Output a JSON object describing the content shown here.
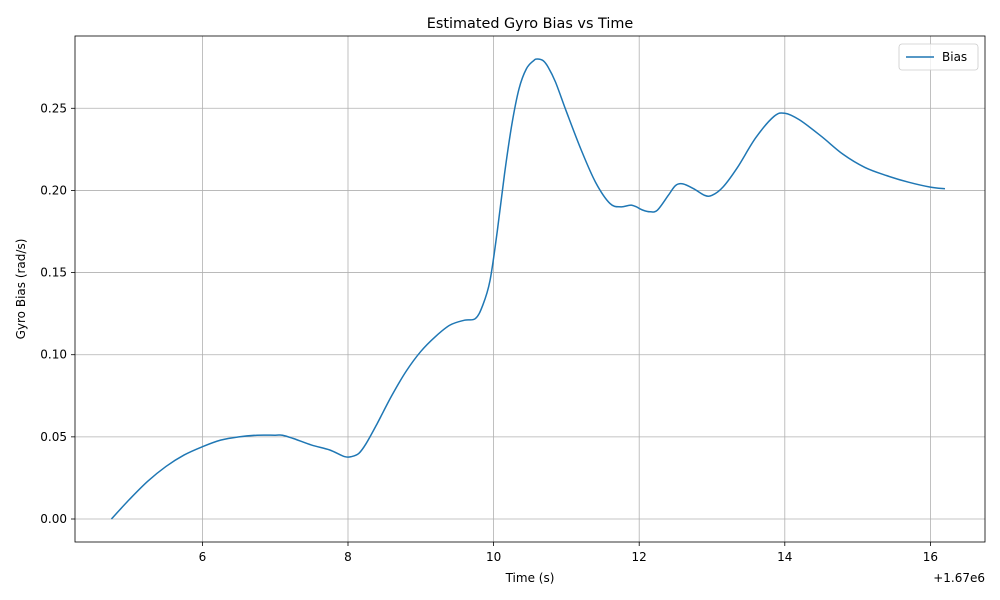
{
  "chart_data": {
    "type": "line",
    "title": "Estimated Gyro Bias vs Time",
    "xlabel": "Time (s)",
    "ylabel": "Gyro Bias (rad/s)",
    "x_offset_label": "+1.67e6",
    "xlim": [
      4.25,
      16.75
    ],
    "ylim": [
      -0.014,
      0.294
    ],
    "xticks": [
      6,
      8,
      10,
      12,
      14,
      16
    ],
    "xtick_labels": [
      "6",
      "8",
      "10",
      "12",
      "14",
      "16"
    ],
    "yticks": [
      0.0,
      0.05,
      0.1,
      0.15,
      0.2,
      0.25
    ],
    "ytick_labels": [
      "0.00",
      "0.05",
      "0.10",
      "0.15",
      "0.20",
      "0.25"
    ],
    "grid": true,
    "legend_position": "top-right",
    "line_color": "#1f77b4",
    "series": [
      {
        "name": "Bias",
        "x": [
          4.75,
          5.0,
          5.25,
          5.5,
          5.75,
          6.0,
          6.25,
          6.5,
          6.75,
          7.0,
          7.1,
          7.25,
          7.5,
          7.75,
          7.95,
          8.05,
          8.15,
          8.25,
          8.4,
          8.6,
          8.8,
          9.0,
          9.2,
          9.4,
          9.6,
          9.75,
          9.85,
          9.95,
          10.05,
          10.15,
          10.25,
          10.35,
          10.45,
          10.55,
          10.6,
          10.68,
          10.75,
          10.85,
          11.0,
          11.2,
          11.4,
          11.6,
          11.75,
          11.9,
          12.05,
          12.15,
          12.25,
          12.4,
          12.5,
          12.6,
          12.75,
          12.9,
          13.0,
          13.15,
          13.35,
          13.6,
          13.85,
          14.0,
          14.2,
          14.5,
          14.8,
          15.1,
          15.4,
          15.7,
          16.0,
          16.2
        ],
        "y": [
          0.0,
          0.012,
          0.023,
          0.032,
          0.039,
          0.044,
          0.048,
          0.05,
          0.051,
          0.051,
          0.051,
          0.049,
          0.045,
          0.042,
          0.038,
          0.038,
          0.04,
          0.046,
          0.058,
          0.075,
          0.09,
          0.102,
          0.111,
          0.118,
          0.121,
          0.122,
          0.13,
          0.145,
          0.175,
          0.21,
          0.24,
          0.262,
          0.274,
          0.279,
          0.28,
          0.279,
          0.275,
          0.266,
          0.248,
          0.225,
          0.205,
          0.192,
          0.19,
          0.191,
          0.188,
          0.187,
          0.188,
          0.197,
          0.203,
          0.204,
          0.201,
          0.197,
          0.197,
          0.202,
          0.214,
          0.232,
          0.245,
          0.247,
          0.243,
          0.233,
          0.222,
          0.214,
          0.209,
          0.205,
          0.202,
          0.201
        ]
      }
    ]
  }
}
